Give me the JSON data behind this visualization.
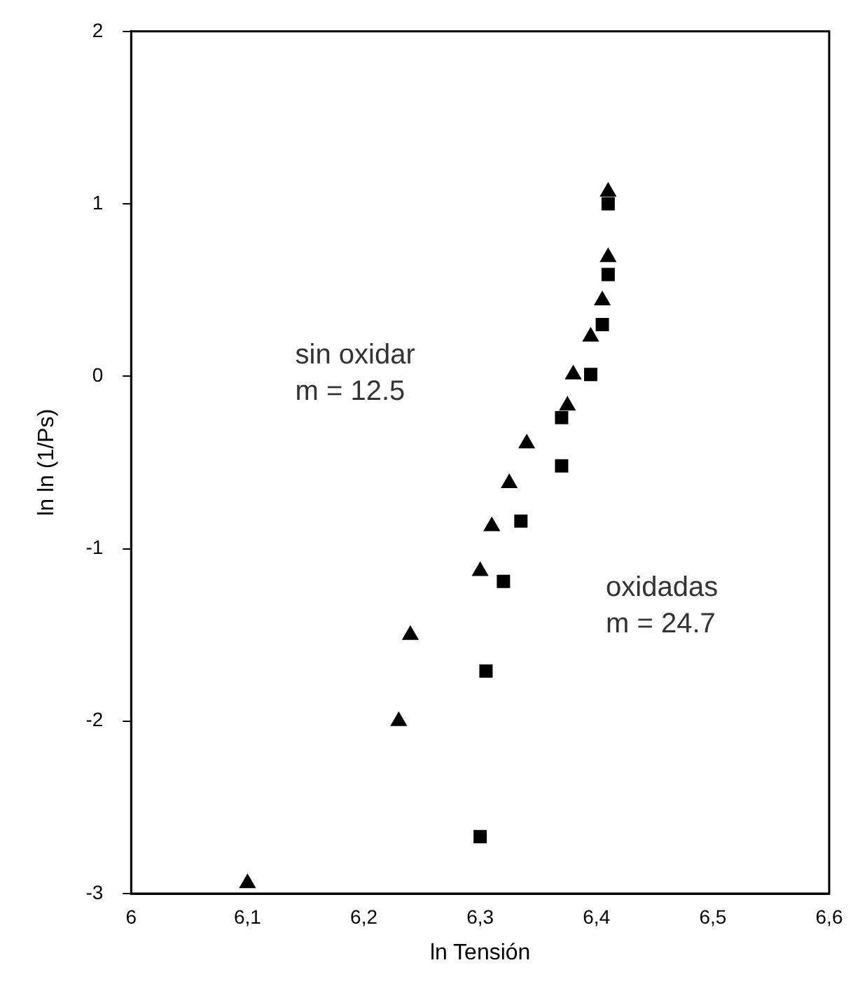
{
  "chart_data": {
    "type": "scatter",
    "xlabel": "ln Tensión",
    "ylabel": "ln ln (1/Ps)",
    "xlim": [
      6,
      6.6
    ],
    "xticks": [
      6,
      {
        "value": 6.1,
        "label": "6,1"
      },
      {
        "value": 6.2,
        "label": "6,2"
      },
      {
        "value": 6.3,
        "label": "6,3"
      },
      {
        "value": 6.4,
        "label": "6,4"
      },
      {
        "value": 6.5,
        "label": "6,5"
      },
      {
        "value": 6.6,
        "label": "6,6"
      }
    ],
    "ylim": [
      -3,
      2
    ],
    "yticks": [
      -3,
      -2,
      -1,
      0,
      1,
      2
    ],
    "grid": false,
    "legend": false,
    "annotations": [
      "sin oxidar\nm = 12.5",
      "oxidadas\nm = 24.7"
    ],
    "series": [
      {
        "color": "#000000",
        "marker": "triangle",
        "x": [
          6.1,
          6.23,
          6.24,
          6.3,
          6.31,
          6.325,
          6.34,
          6.375,
          6.38,
          6.395,
          6.405,
          6.41,
          6.41
        ],
        "values": [
          -2.94,
          -2.0,
          -1.5,
          -1.13,
          -0.87,
          -0.62,
          -0.39,
          -0.17,
          0.01,
          0.23,
          0.44,
          0.69,
          1.07
        ]
      },
      {
        "color": "#000000",
        "marker": "square",
        "x": [
          6.3,
          6.305,
          6.32,
          6.335,
          6.37,
          6.37,
          6.395,
          6.405,
          6.41,
          6.41
        ],
        "values": [
          -2.67,
          -1.71,
          -1.19,
          -0.84,
          -0.52,
          -0.24,
          0.01,
          0.3,
          0.59,
          1.0
        ]
      }
    ]
  }
}
